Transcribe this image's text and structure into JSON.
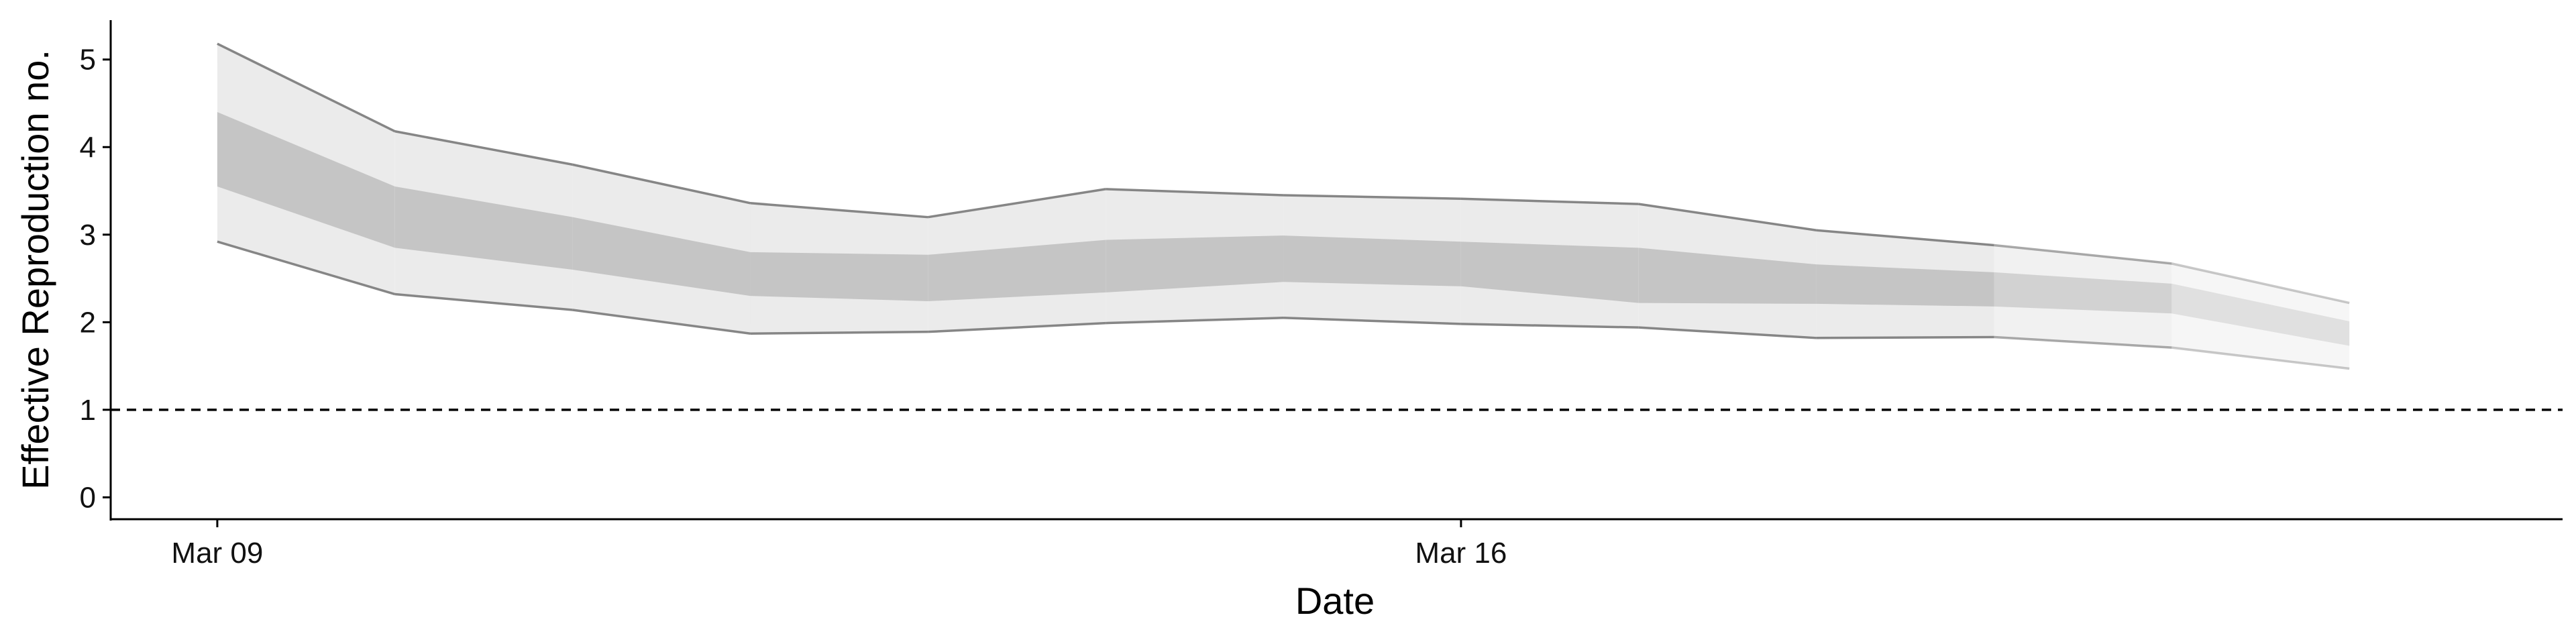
{
  "chart_data": {
    "type": "area",
    "xlabel": "Date",
    "ylabel": "Effective Reproduction no.",
    "x": [
      "2020-03-09",
      "2020-03-10",
      "2020-03-11",
      "2020-03-12",
      "2020-03-13",
      "2020-03-14",
      "2020-03-15",
      "2020-03-16",
      "2020-03-17",
      "2020-03-18",
      "2020-03-19",
      "2020-03-20",
      "2020-03-21"
    ],
    "x_ticks": [
      {
        "date": "2020-03-09",
        "label": "Mar 09"
      },
      {
        "date": "2020-03-16",
        "label": "Mar 16"
      }
    ],
    "y_ticks": [
      0,
      1,
      2,
      3,
      4,
      5
    ],
    "xlim": [
      "2020-03-08.4",
      "2020-03-22.2"
    ],
    "ylim": [
      -0.25,
      5.45
    ],
    "reference_line": {
      "y": 1,
      "style": "dashed"
    },
    "series": [
      {
        "outer_lower": [
          2.92,
          2.32,
          2.14,
          1.87,
          1.89,
          1.99,
          2.05,
          1.98,
          1.94,
          1.82,
          1.83,
          1.71,
          1.47
        ],
        "outer_upper": [
          5.18,
          4.18,
          3.8,
          3.36,
          3.2,
          3.52,
          3.45,
          3.41,
          3.35,
          3.05,
          2.88,
          2.67,
          2.22
        ],
        "inner_lower": [
          3.55,
          2.85,
          2.6,
          2.3,
          2.24,
          2.34,
          2.46,
          2.41,
          2.22,
          2.21,
          2.18,
          2.1,
          1.73
        ],
        "inner_upper": [
          4.4,
          3.55,
          3.2,
          2.8,
          2.77,
          2.94,
          2.99,
          2.92,
          2.85,
          2.66,
          2.57,
          2.44,
          2.01
        ]
      }
    ],
    "colors": {
      "outer_band": "#ebebeb",
      "inner_band": "#c5c5c5",
      "bound_line": "#808080",
      "axis": "#000000"
    },
    "grid": false,
    "legend": "none"
  }
}
